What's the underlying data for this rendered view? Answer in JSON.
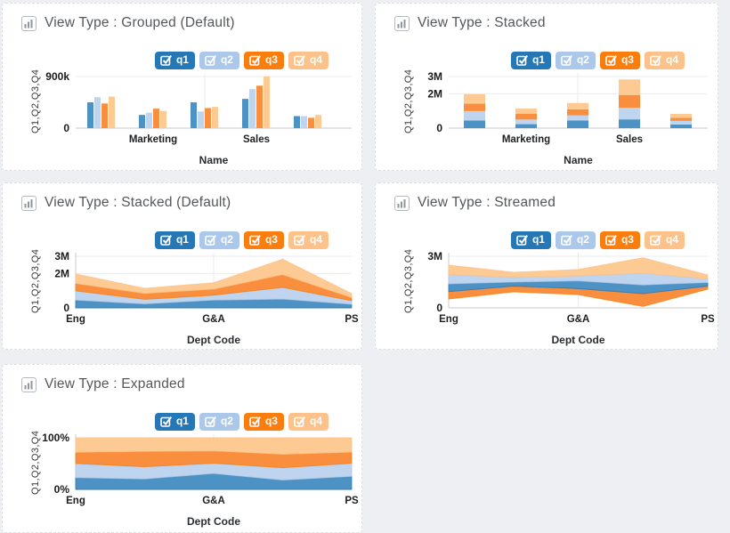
{
  "colors": {
    "page_bg": "#edeff2",
    "card_border": "#dcdfe2",
    "title": "#54585b",
    "grid": "#e9ebee",
    "baseline": "#d8dbde",
    "axis": "#c7cbd0"
  },
  "legend": {
    "items": [
      {
        "label": "q1",
        "checked": true,
        "color": "#2577b5",
        "fill": "#4d92c5"
      },
      {
        "label": "q2",
        "checked": true,
        "color": "#abc7e9",
        "fill": "#bfd4ee"
      },
      {
        "label": "q3",
        "checked": true,
        "color": "#fa7d0e",
        "fill": "#f98f3e"
      },
      {
        "label": "q4",
        "checked": true,
        "color": "#fcc289",
        "fill": "#fcca92"
      }
    ]
  },
  "cards": [
    {
      "title": "View Type : Grouped (Default)"
    },
    {
      "title": "View Type : Stacked"
    },
    {
      "title": "View Type : Stacked (Default)"
    },
    {
      "title": "View Type : Streamed"
    },
    {
      "title": "View Type : Expanded"
    }
  ],
  "chart_data": [
    {
      "type": "grouped-bar",
      "title": "View Type : Grouped (Default)",
      "xlabel": "Name",
      "ylabel": "Q1,Q2,Q3,Q4",
      "ylim": [
        0,
        900000
      ],
      "yticks": [
        {
          "value": 0,
          "label": "0"
        },
        {
          "value": 900000,
          "label": "900k"
        }
      ],
      "legend_position": "top-right",
      "categories": [
        {
          "label": "Eng",
          "shown": false
        },
        {
          "label": "Marketing",
          "shown": true
        },
        {
          "label": "G&A",
          "shown": false
        },
        {
          "label": "Sales",
          "shown": true
        },
        {
          "label": "PS",
          "shown": false
        }
      ],
      "series": [
        {
          "name": "q1",
          "values": [
            450000,
            230000,
            450000,
            510000,
            210000
          ]
        },
        {
          "name": "q2",
          "values": [
            540000,
            270000,
            290000,
            680000,
            210000
          ]
        },
        {
          "name": "q3",
          "values": [
            430000,
            340000,
            350000,
            740000,
            180000
          ]
        },
        {
          "name": "q4",
          "values": [
            550000,
            300000,
            370000,
            900000,
            230000
          ]
        }
      ]
    },
    {
      "type": "stacked-bar",
      "title": "View Type : Stacked",
      "xlabel": "Name",
      "ylabel": "Q1,Q2,Q3,Q4",
      "ylim": [
        0,
        3000000
      ],
      "yticks": [
        {
          "value": 0,
          "label": "0"
        },
        {
          "value": 2000000,
          "label": "2M"
        },
        {
          "value": 3000000,
          "label": "3M"
        }
      ],
      "legend_position": "top-right",
      "categories": [
        {
          "label": "Eng",
          "shown": false
        },
        {
          "label": "Marketing",
          "shown": true
        },
        {
          "label": "G&A",
          "shown": false
        },
        {
          "label": "Sales",
          "shown": true
        },
        {
          "label": "PS",
          "shown": false
        }
      ],
      "series": [
        {
          "name": "q1",
          "values": [
            450000,
            230000,
            450000,
            510000,
            210000
          ]
        },
        {
          "name": "q2",
          "values": [
            540000,
            270000,
            290000,
            680000,
            210000
          ]
        },
        {
          "name": "q3",
          "values": [
            430000,
            340000,
            350000,
            740000,
            180000
          ]
        },
        {
          "name": "q4",
          "values": [
            550000,
            300000,
            370000,
            900000,
            230000
          ]
        }
      ]
    },
    {
      "type": "stacked-area",
      "title": "View Type : Stacked (Default)",
      "xlabel": "Dept Code",
      "ylabel": "Q1,Q2,Q3,Q4",
      "ylim": [
        0,
        3000000
      ],
      "yticks": [
        {
          "value": 0,
          "label": "0"
        },
        {
          "value": 2000000,
          "label": "2M"
        },
        {
          "value": 3000000,
          "label": "3M"
        }
      ],
      "legend_position": "top-right",
      "categories": [
        {
          "label": "Eng",
          "shown": true
        },
        {
          "label": "Marketing",
          "shown": false
        },
        {
          "label": "G&A",
          "shown": true
        },
        {
          "label": "Sales",
          "shown": false
        },
        {
          "label": "PS",
          "shown": true
        }
      ],
      "series": [
        {
          "name": "q1",
          "values": [
            450000,
            230000,
            450000,
            510000,
            210000
          ]
        },
        {
          "name": "q2",
          "values": [
            540000,
            270000,
            290000,
            680000,
            210000
          ]
        },
        {
          "name": "q3",
          "values": [
            430000,
            340000,
            350000,
            740000,
            180000
          ]
        },
        {
          "name": "q4",
          "values": [
            550000,
            300000,
            370000,
            900000,
            230000
          ]
        }
      ]
    },
    {
      "type": "stream",
      "title": "View Type : Streamed",
      "xlabel": "Dept Code",
      "ylabel": "Q1,Q2,Q3,Q4",
      "ylim": [
        0,
        3000000
      ],
      "yticks": [
        {
          "value": 0,
          "label": "0"
        },
        {
          "value": 3000000,
          "label": "3M"
        }
      ],
      "legend_position": "top-right",
      "stack_order": [
        2,
        0,
        1,
        3
      ],
      "categories": [
        {
          "label": "Eng",
          "shown": true
        },
        {
          "label": "Marketing",
          "shown": false
        },
        {
          "label": "G&A",
          "shown": true
        },
        {
          "label": "Sales",
          "shown": false
        },
        {
          "label": "PS",
          "shown": true
        }
      ],
      "series": [
        {
          "name": "q1",
          "values": [
            450000,
            230000,
            450000,
            510000,
            210000
          ]
        },
        {
          "name": "q2",
          "values": [
            540000,
            270000,
            290000,
            680000,
            210000
          ]
        },
        {
          "name": "q3",
          "values": [
            430000,
            340000,
            350000,
            740000,
            180000
          ]
        },
        {
          "name": "q4",
          "values": [
            550000,
            300000,
            370000,
            900000,
            230000
          ]
        }
      ]
    },
    {
      "type": "expanded-area",
      "title": "View Type : Expanded",
      "xlabel": "Dept Code",
      "ylabel": "Q1,Q2,Q3,Q4",
      "ylim": [
        0,
        100
      ],
      "yticks": [
        {
          "value": 0,
          "label": "0%"
        },
        {
          "value": 100,
          "label": "100%"
        }
      ],
      "legend_position": "top-right",
      "categories": [
        {
          "label": "Eng",
          "shown": true
        },
        {
          "label": "Marketing",
          "shown": false
        },
        {
          "label": "G&A",
          "shown": true
        },
        {
          "label": "Sales",
          "shown": false
        },
        {
          "label": "PS",
          "shown": true
        }
      ],
      "series": [
        {
          "name": "q1",
          "values": [
            450000,
            230000,
            450000,
            510000,
            210000
          ]
        },
        {
          "name": "q2",
          "values": [
            540000,
            270000,
            290000,
            680000,
            210000
          ]
        },
        {
          "name": "q3",
          "values": [
            430000,
            340000,
            350000,
            740000,
            180000
          ]
        },
        {
          "name": "q4",
          "values": [
            550000,
            300000,
            370000,
            900000,
            230000
          ]
        }
      ]
    }
  ]
}
